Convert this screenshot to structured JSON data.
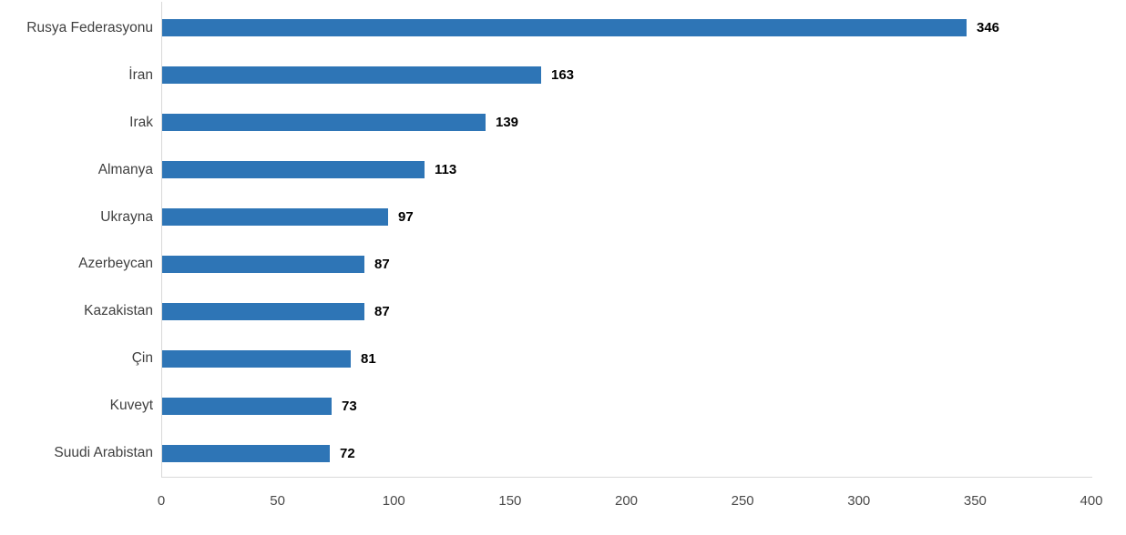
{
  "chart_data": {
    "type": "bar",
    "orientation": "horizontal",
    "title": "",
    "xlabel": "",
    "ylabel": "",
    "categories": [
      "Rusya Federasyonu",
      "İran",
      "Irak",
      "Almanya",
      "Ukrayna",
      "Azerbeycan",
      "Kazakistan",
      "Çin",
      "Kuveyt",
      "Suudi Arabistan"
    ],
    "values": [
      346,
      163,
      139,
      113,
      97,
      87,
      87,
      81,
      73,
      72
    ],
    "xlim": [
      0,
      400
    ],
    "x_ticks": [
      0,
      50,
      100,
      150,
      200,
      250,
      300,
      350,
      400
    ],
    "grid": false,
    "legend": false,
    "value_labels_shown": true,
    "colors": {
      "bar": "#2e75b6",
      "value_label": "#000000",
      "category_label": "#404040",
      "tick_label": "#4a4a4a",
      "axis_line": "#d9d9d9",
      "background": "#ffffff"
    }
  }
}
